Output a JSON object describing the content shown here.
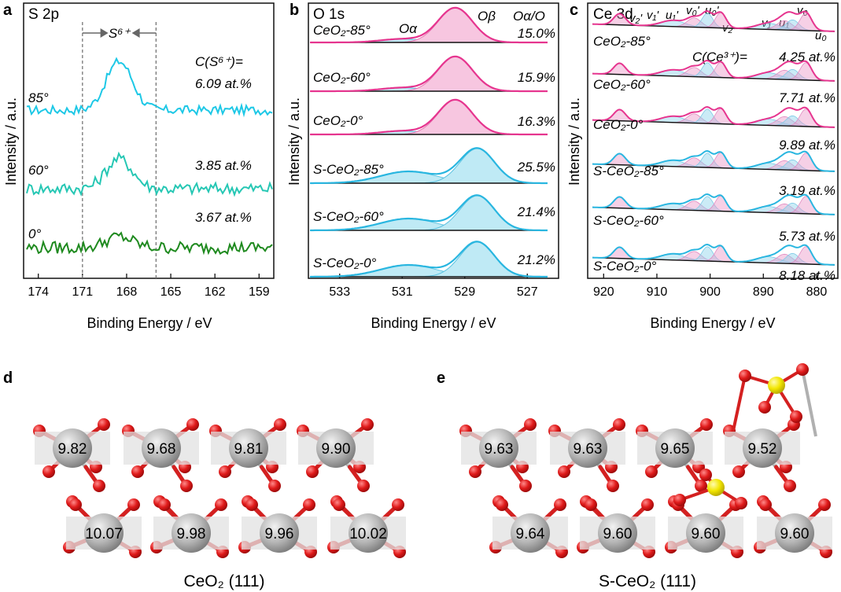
{
  "panels": {
    "a": {
      "letter": "a",
      "title": "S 2p"
    },
    "b": {
      "letter": "b",
      "title": "O 1s"
    },
    "c": {
      "letter": "c",
      "title": "Ce 3d"
    },
    "d": {
      "letter": "d",
      "caption": "CeO₂ (111)"
    },
    "e": {
      "letter": "e",
      "caption": "S-CeO₂ (111)"
    }
  },
  "chart_data": [
    {
      "type": "line",
      "panel": "a",
      "title": "S 2p",
      "xlabel": "Binding Energy / eV",
      "ylabel": "Intensity / a.u.",
      "xlim": [
        175,
        158
      ],
      "x_reversed": true,
      "xticks": [
        "174",
        "171",
        "168",
        "165",
        "162",
        "159"
      ],
      "region_label": "S⁶⁺",
      "region": [
        171,
        166
      ],
      "concentration_label": "C(S⁶⁺)=",
      "series": [
        {
          "name": "85°",
          "color": "#1ec8e6",
          "peak_x": 168.5,
          "value_label": "6.09 at.%"
        },
        {
          "name": "60°",
          "color": "#26c7b4",
          "peak_x": 168.5,
          "value_label": "3.85 at.%"
        },
        {
          "name": "0°",
          "color": "#1f8a1f",
          "peak_x": 168.5,
          "value_label": "3.67 at.%"
        }
      ]
    },
    {
      "type": "line",
      "panel": "b",
      "title": "O 1s",
      "xlabel": "Binding Energy / eV",
      "ylabel": "Intensity / a.u.",
      "xlim": [
        534,
        526
      ],
      "x_reversed": true,
      "xticks": [
        "533",
        "531",
        "529",
        "527"
      ],
      "header_labels": [
        "Oα",
        "Oβ",
        "Oα/O"
      ],
      "series": [
        {
          "name": "CeO₂-85°",
          "color": "#e6358f",
          "o_beta_x": 529.3,
          "o_alpha_x": 531.0,
          "ratio": "15.0%"
        },
        {
          "name": "CeO₂-60°",
          "color": "#e6358f",
          "o_beta_x": 529.3,
          "o_alpha_x": 531.0,
          "ratio": "15.9%"
        },
        {
          "name": "CeO₂-0°",
          "color": "#e6358f",
          "o_beta_x": 529.3,
          "o_alpha_x": 531.0,
          "ratio": "16.3%"
        },
        {
          "name": "S-CeO₂-85°",
          "color": "#29b6e0",
          "o_beta_x": 528.6,
          "o_alpha_x": 530.8,
          "ratio": "25.5%"
        },
        {
          "name": "S-CeO₂-60°",
          "color": "#29b6e0",
          "o_beta_x": 528.6,
          "o_alpha_x": 530.8,
          "ratio": "21.4%"
        },
        {
          "name": "S-CeO₂-0°",
          "color": "#29b6e0",
          "o_beta_x": 528.6,
          "o_alpha_x": 530.8,
          "ratio": "21.2%"
        }
      ]
    },
    {
      "type": "line",
      "panel": "c",
      "title": "Ce 3d",
      "xlabel": "Binding Energy / eV",
      "ylabel": "Intensity / a.u.",
      "xlim": [
        923,
        876
      ],
      "x_reversed": true,
      "xticks": [
        "920",
        "910",
        "900",
        "890",
        "880"
      ],
      "peak_labels": [
        "v₂'",
        "v₁'",
        "u₁'",
        "v₀'",
        "u₀'",
        "v₂",
        "v₁",
        "u₁",
        "v₀",
        "u₀"
      ],
      "concentration_label": "C(Ce³⁺)=",
      "series": [
        {
          "name": "CeO₂-85°",
          "color": "#e6358f",
          "value_label": "4.25 at.%"
        },
        {
          "name": "CeO₂-60°",
          "color": "#e6358f",
          "value_label": "7.71 at.%"
        },
        {
          "name": "CeO₂-0°",
          "color": "#e6358f",
          "value_label": "9.89 at.%"
        },
        {
          "name": "S-CeO₂-85°",
          "color": "#29b6e0",
          "value_label": "3.19 at.%"
        },
        {
          "name": "S-CeO₂-60°",
          "color": "#29b6e0",
          "value_label": "5.73 at.%"
        },
        {
          "name": "S-CeO₂-0°",
          "color": "#29b6e0",
          "value_label": "8.18 at.%"
        }
      ]
    }
  ],
  "structures": {
    "d": {
      "top_values": [
        "9.82",
        "9.68",
        "9.81",
        "9.90"
      ],
      "bottom_values": [
        "10.07",
        "9.98",
        "9.96",
        "10.02"
      ]
    },
    "e": {
      "top_values": [
        "9.63",
        "9.63",
        "9.65",
        "9.52"
      ],
      "bottom_values": [
        "9.64",
        "9.60",
        "9.60",
        "9.60"
      ]
    }
  },
  "colors": {
    "oxygen": "#e01b1b",
    "cerium": "#a6a6a6",
    "sulfur": "#f2e600",
    "ceo2": "#e6358f",
    "sceo2": "#29b6e0",
    "fill_ceo2": "#f7c6e0",
    "fill_sceo2": "#bfeaf5"
  }
}
